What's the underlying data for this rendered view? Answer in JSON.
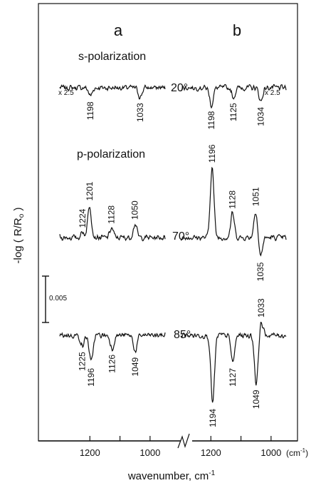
{
  "chart_data": {
    "type": "line",
    "xlabel": "wavenumber, cm",
    "xlabel_sup": "-1",
    "ylabel_prefix": "-log ( R/R",
    "ylabel_sub": "o",
    "ylabel_suffix": " )",
    "x_unit": "(cm",
    "x_unit_sup": "-1",
    "x_unit_close": ")",
    "x_reversed": true,
    "x_axis_break": true,
    "scale_bar": {
      "label": "0.005",
      "value": 0.005
    },
    "columns": [
      {
        "label": "a",
        "xlim": [
          1300,
          950
        ],
        "ticks": [
          1200,
          1100,
          1000
        ],
        "tick_labels": [
          "1200",
          "1000"
        ]
      },
      {
        "label": "b",
        "xlim": [
          1300,
          950
        ],
        "ticks": [
          1200,
          1100,
          1000
        ],
        "tick_labels": [
          "1200",
          "1000"
        ]
      }
    ],
    "sections": [
      {
        "key": "s",
        "label": "s-polarization"
      },
      {
        "key": "p",
        "label": "p-polarization"
      }
    ],
    "rows": [
      {
        "angle": "20°",
        "section": "s"
      },
      {
        "angle": "70°",
        "section": "p"
      },
      {
        "angle": "85°",
        "section": "p"
      }
    ],
    "spectra": [
      {
        "column": "a",
        "row": 0,
        "multiplier": "x 2.5",
        "peaks": [
          {
            "x": 1198,
            "amp": -0.3,
            "label": "1198"
          },
          {
            "x": 1033,
            "amp": -0.35,
            "label": "1033"
          }
        ]
      },
      {
        "column": "b",
        "row": 0,
        "multiplier": "x 2.5",
        "peaks": [
          {
            "x": 1198,
            "amp": -0.65,
            "label": "1198"
          },
          {
            "x": 1125,
            "amp": -0.35,
            "label": "1125"
          },
          {
            "x": 1034,
            "amp": -0.5,
            "label": "1034"
          }
        ]
      },
      {
        "column": "a",
        "row": 1,
        "peaks": [
          {
            "x": 1224,
            "amp": 0.2,
            "label": "1224"
          },
          {
            "x": 1201,
            "amp": 1.2,
            "label": "1201"
          },
          {
            "x": 1128,
            "amp": 0.35,
            "label": "1128"
          },
          {
            "x": 1050,
            "amp": 0.5,
            "label": "1050"
          }
        ]
      },
      {
        "column": "b",
        "row": 1,
        "peaks": [
          {
            "x": 1196,
            "amp": 2.6,
            "label": "1196"
          },
          {
            "x": 1128,
            "amp": 0.9,
            "label": "1128"
          },
          {
            "x": 1051,
            "amp": 1.0,
            "label": "1051"
          },
          {
            "x": 1035,
            "amp": -0.7,
            "label": "1035"
          }
        ]
      },
      {
        "column": "a",
        "row": 2,
        "peaks": [
          {
            "x": 1225,
            "amp": -0.4,
            "label": "1225"
          },
          {
            "x": 1196,
            "amp": -1.0,
            "label": "1196"
          },
          {
            "x": 1126,
            "amp": -0.5,
            "label": "1126"
          },
          {
            "x": 1049,
            "amp": -0.6,
            "label": "1049"
          }
        ]
      },
      {
        "column": "b",
        "row": 2,
        "peaks": [
          {
            "x": 1194,
            "amp": -2.5,
            "label": "1194"
          },
          {
            "x": 1127,
            "amp": -1.0,
            "label": "1127"
          },
          {
            "x": 1049,
            "amp": -1.8,
            "label": "1049"
          },
          {
            "x": 1033,
            "amp": 0.5,
            "label": "1033"
          }
        ]
      }
    ]
  }
}
